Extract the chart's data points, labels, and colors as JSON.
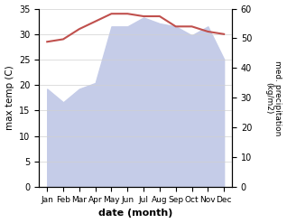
{
  "months": [
    "Jan",
    "Feb",
    "Mar",
    "Apr",
    "May",
    "Jun",
    "Jul",
    "Aug",
    "Sep",
    "Oct",
    "Nov",
    "Dec"
  ],
  "max_temp": [
    28.5,
    29.0,
    31.0,
    32.5,
    34.0,
    34.0,
    33.5,
    33.5,
    31.5,
    31.5,
    30.5,
    30.0
  ],
  "precipitation": [
    33.0,
    28.5,
    33.0,
    35.0,
    54.0,
    54.0,
    57.0,
    55.0,
    54.0,
    51.0,
    54.0,
    43.0
  ],
  "temp_color": "#c0504d",
  "precip_fill_color": "#c5cce8",
  "ylabel_left": "max temp (C)",
  "ylabel_right": "med. precipitation\n(kg/m2)",
  "xlabel": "date (month)",
  "ylim_left": [
    0,
    35
  ],
  "ylim_right": [
    0,
    60
  ],
  "yticks_left": [
    0,
    5,
    10,
    15,
    20,
    25,
    30,
    35
  ],
  "yticks_right": [
    0,
    10,
    20,
    30,
    40,
    50,
    60
  ],
  "bg_color": "#ffffff",
  "grid_color": "#d0d0d0"
}
